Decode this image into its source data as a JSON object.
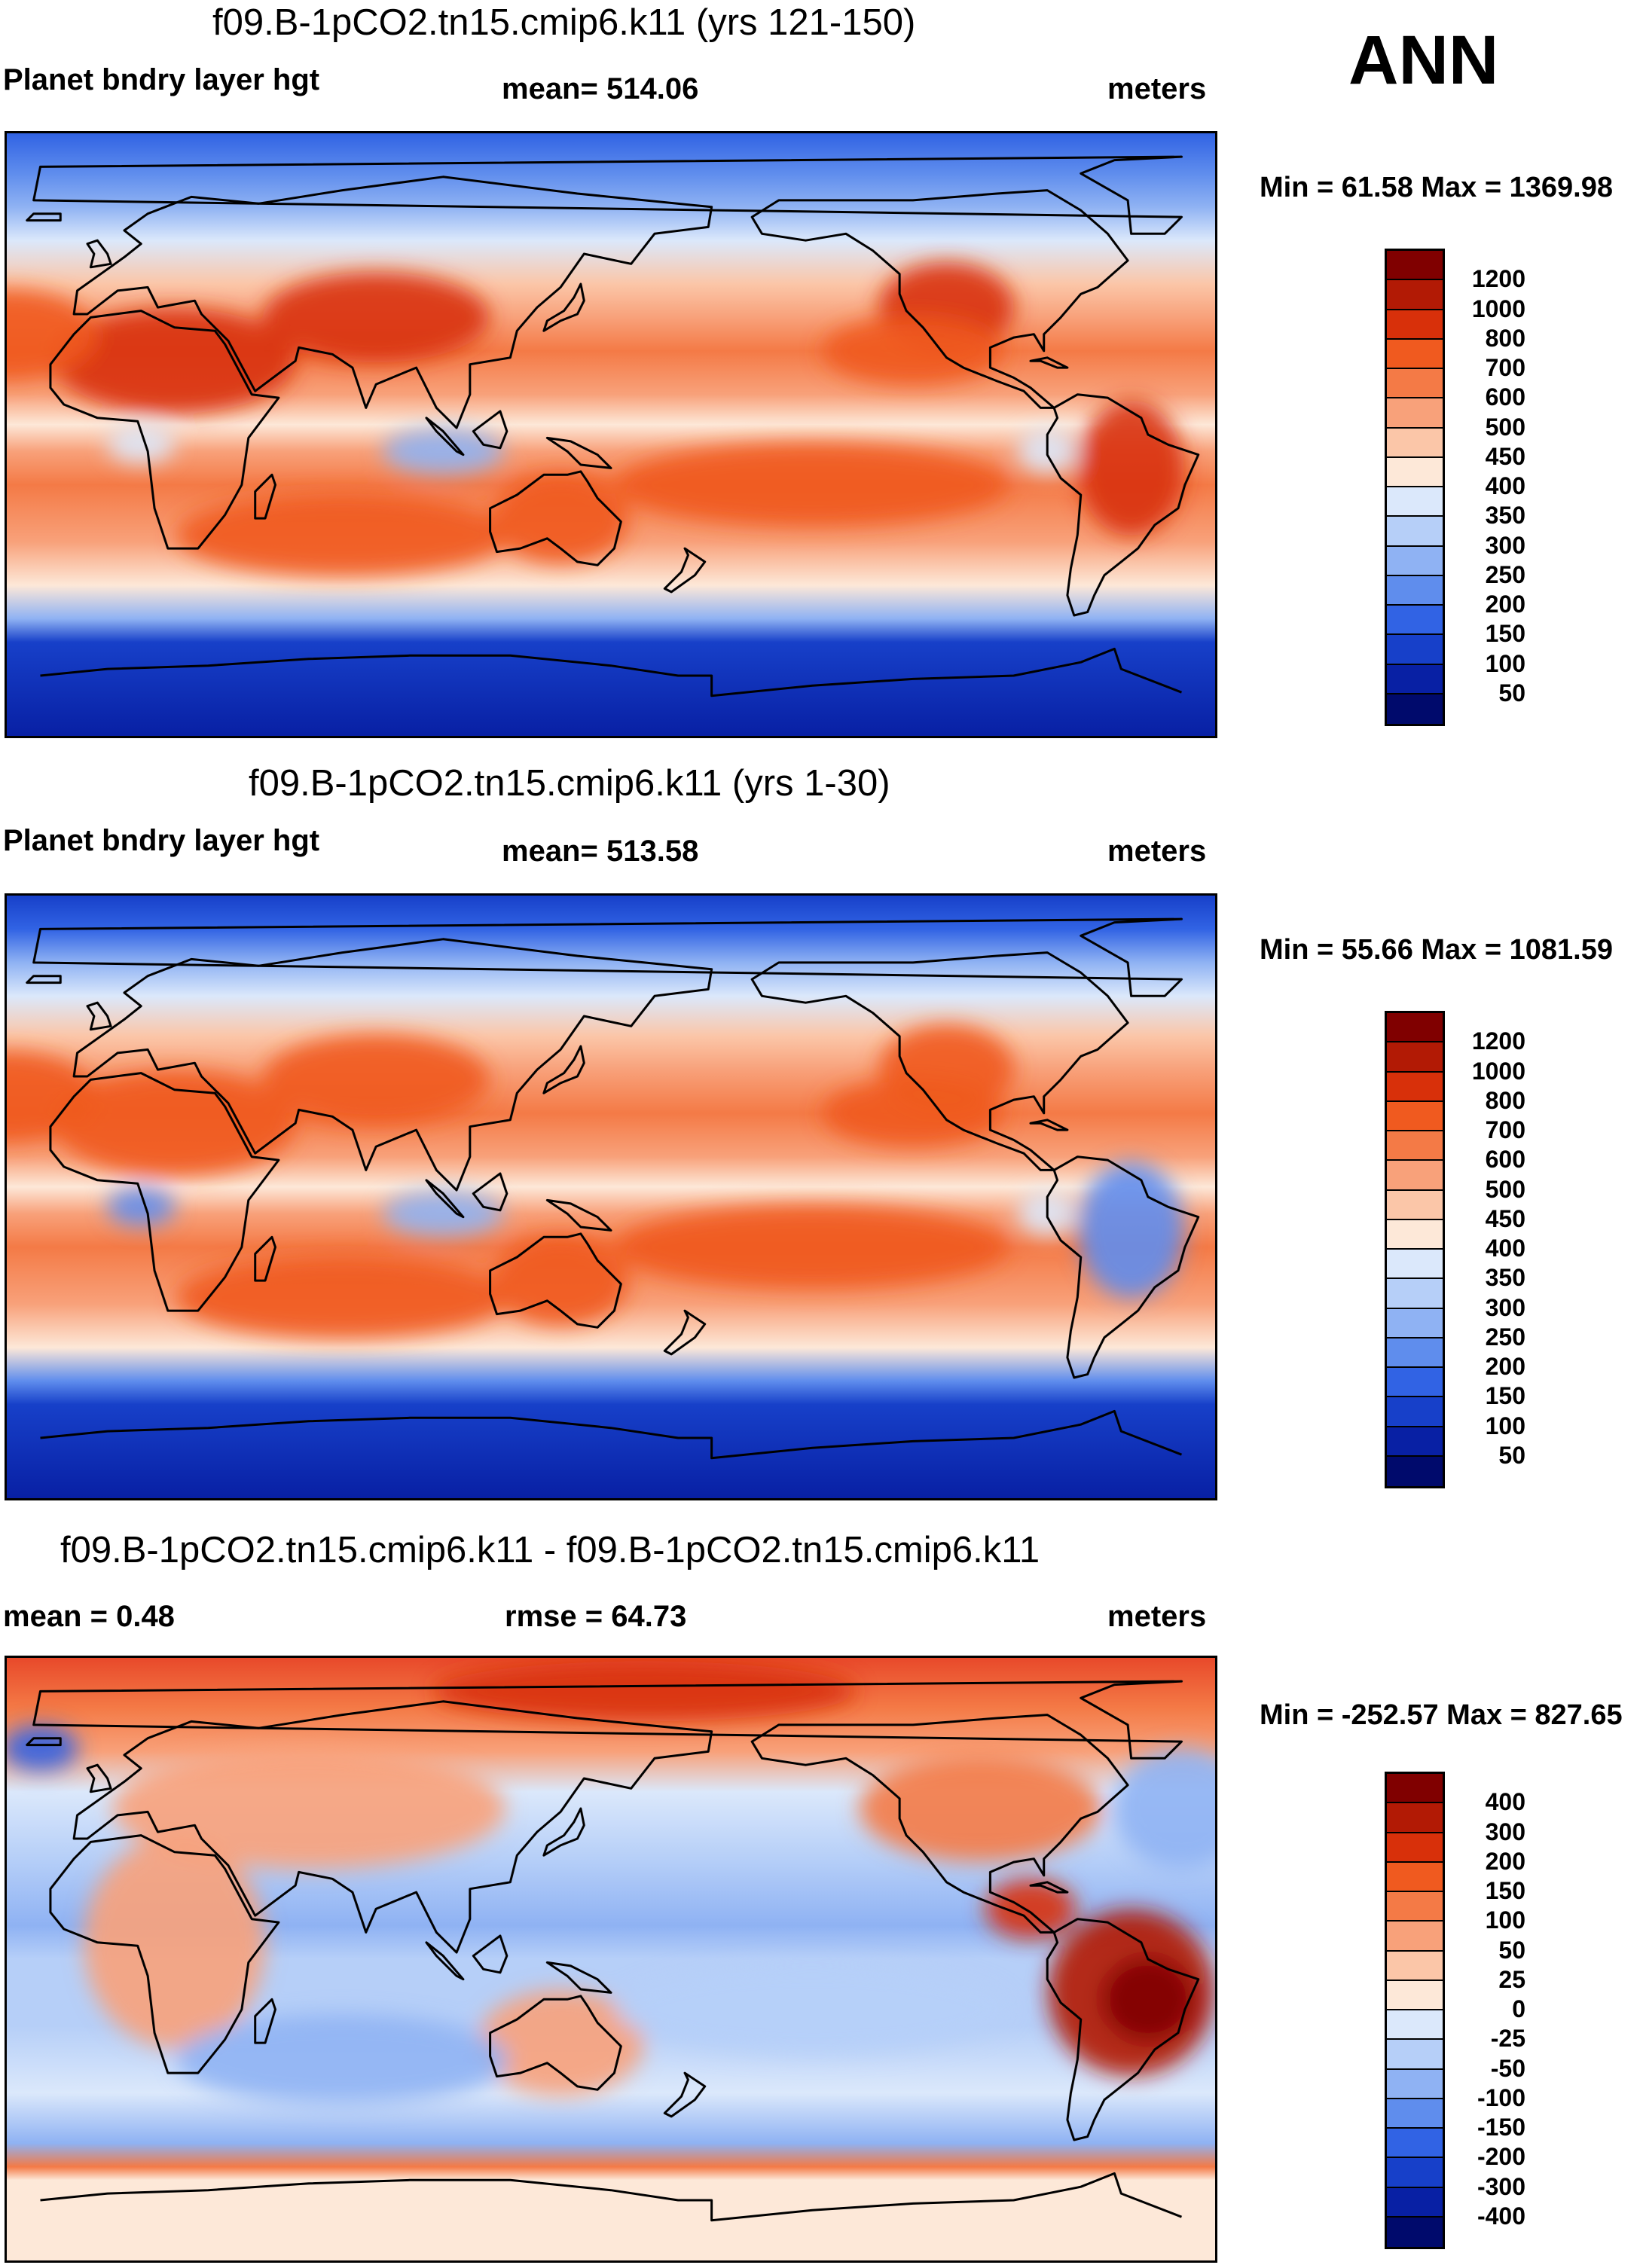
{
  "season": "ANN",
  "panels": [
    {
      "title": "f09.B-1pCO2.tn15.cmip6.k11 (yrs 121-150)",
      "left_label": "Planet bndry layer hgt",
      "center_label": "mean= 514.06",
      "right_label": "meters",
      "minmax": "Min =  61.58 Max = 1369.98",
      "colorbar": {
        "labels": [
          "1200",
          "1000",
          "800",
          "700",
          "600",
          "500",
          "450",
          "400",
          "350",
          "300",
          "250",
          "200",
          "150",
          "100",
          "50"
        ],
        "colors": [
          "#800000",
          "#b21a05",
          "#d8300a",
          "#f05a1f",
          "#f47a46",
          "#f8a17a",
          "#fbc6a8",
          "#fde8d8",
          "#dbe8fb",
          "#b6cff8",
          "#8fb2f3",
          "#5f8ded",
          "#3163e4",
          "#1740c9",
          "#0820a4",
          "#000a6c"
        ]
      },
      "regions": [
        "Eurasia",
        "Africa",
        "North America",
        "South America",
        "Australia",
        "Antarctica",
        "Pacific Ocean",
        "Atlantic Ocean",
        "Indian Ocean"
      ]
    },
    {
      "title": "f09.B-1pCO2.tn15.cmip6.k11 (yrs 1-30)",
      "left_label": "Planet bndry layer hgt",
      "center_label": "mean= 513.58",
      "right_label": "meters",
      "minmax": "Min =  55.66 Max = 1081.59",
      "colorbar": {
        "labels": [
          "1200",
          "1000",
          "800",
          "700",
          "600",
          "500",
          "450",
          "400",
          "350",
          "300",
          "250",
          "200",
          "150",
          "100",
          "50"
        ],
        "colors": [
          "#800000",
          "#b21a05",
          "#d8300a",
          "#f05a1f",
          "#f47a46",
          "#f8a17a",
          "#fbc6a8",
          "#fde8d8",
          "#dbe8fb",
          "#b6cff8",
          "#8fb2f3",
          "#5f8ded",
          "#3163e4",
          "#1740c9",
          "#0820a4",
          "#000a6c"
        ]
      },
      "regions": [
        "Eurasia",
        "Africa",
        "North America",
        "South America",
        "Australia",
        "Antarctica",
        "Pacific Ocean",
        "Atlantic Ocean",
        "Indian Ocean"
      ]
    },
    {
      "title": "f09.B-1pCO2.tn15.cmip6.k11 - f09.B-1pCO2.tn15.cmip6.k11",
      "left_label": "mean =   0.48",
      "center_label": "rmse =  64.73",
      "right_label": "meters",
      "minmax": "Min = -252.57 Max = 827.65",
      "colorbar": {
        "labels": [
          "400",
          "300",
          "200",
          "150",
          "100",
          "50",
          "25",
          "0",
          "-25",
          "-50",
          "-100",
          "-150",
          "-200",
          "-300",
          "-400"
        ],
        "colors": [
          "#800000",
          "#b21a05",
          "#d8300a",
          "#f05a1f",
          "#f47a46",
          "#f8a17a",
          "#fbc6a8",
          "#fde8d8",
          "#dbe8fb",
          "#b6cff8",
          "#8fb2f3",
          "#5f8ded",
          "#3163e4",
          "#1740c9",
          "#0820a4",
          "#000a6c"
        ]
      },
      "regions": [
        "Eurasia",
        "Africa",
        "North America",
        "South America",
        "Australia",
        "Antarctica",
        "Pacific Ocean",
        "Atlantic Ocean",
        "Indian Ocean"
      ]
    }
  ]
}
